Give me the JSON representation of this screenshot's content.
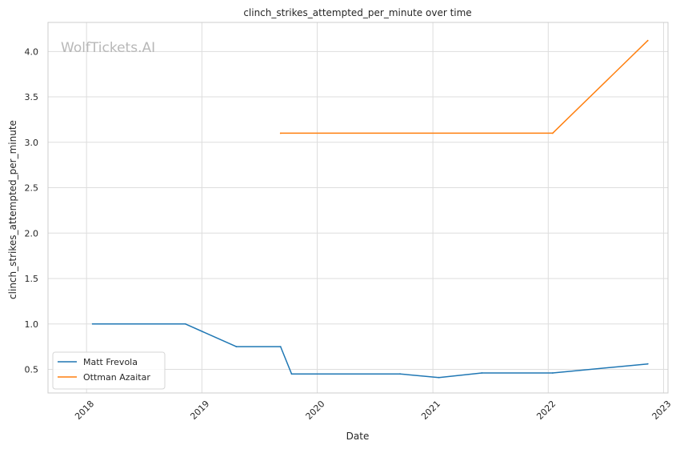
{
  "chart_data": {
    "type": "line",
    "title": "clinch_strikes_attempted_per_minute over time",
    "xlabel": "Date",
    "ylabel": "clinch_strikes_attempted_per_minute",
    "watermark": "WolfTickets.AI",
    "grid": true,
    "legend_position": "bottom-left",
    "xlim": [
      "2017-09-01",
      "2023-01-15"
    ],
    "ylim": [
      0.24,
      4.32
    ],
    "x_ticks": [
      "2018",
      "2019",
      "2020",
      "2021",
      "2022",
      "2023"
    ],
    "y_ticks": [
      "0.5",
      "1.0",
      "1.5",
      "2.0",
      "2.5",
      "3.0",
      "3.5",
      "4.0"
    ],
    "series": [
      {
        "name": "Matt Frevola",
        "color": "#1f77b4",
        "x": [
          "2018-01-20",
          "2018-11-10",
          "2019-04-20",
          "2019-09-07",
          "2019-10-12",
          "2020-09-19",
          "2021-01-20",
          "2021-06-05",
          "2022-01-15",
          "2022-11-12"
        ],
        "y": [
          1.0,
          1.0,
          0.75,
          0.75,
          0.45,
          0.45,
          0.41,
          0.46,
          0.46,
          0.56
        ]
      },
      {
        "name": "Ottman Azaitar",
        "color": "#ff7f0e",
        "x": [
          "2019-09-07",
          "2022-01-15",
          "2022-11-12"
        ],
        "y": [
          3.1,
          3.1,
          4.12
        ]
      }
    ]
  }
}
